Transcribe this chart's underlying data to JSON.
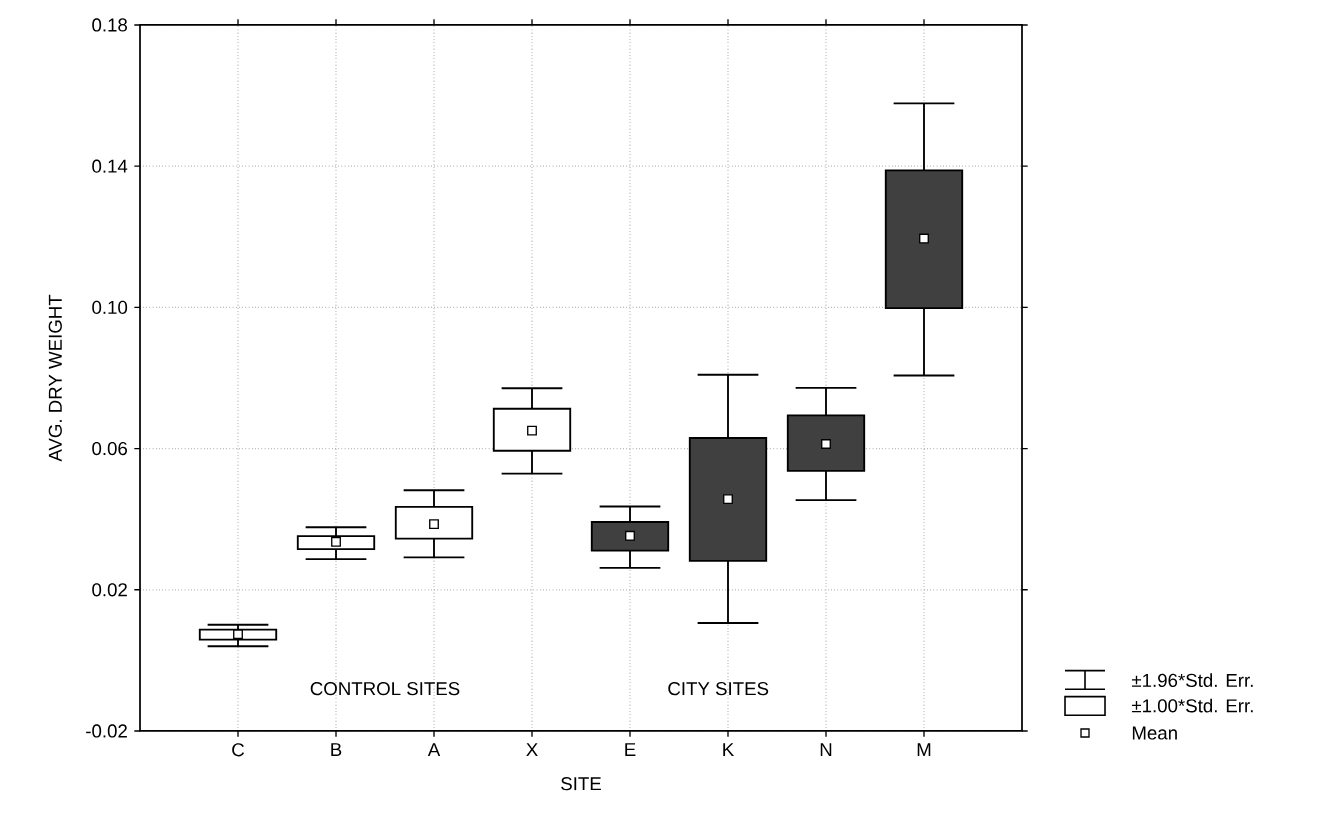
{
  "chart_data": {
    "type": "box",
    "xlabel": "SITE",
    "ylabel": "AVG. DRY WEIGHT",
    "categories": [
      "C",
      "B",
      "A",
      "X",
      "E",
      "K",
      "N",
      "M"
    ],
    "colors": [
      "#ffffff",
      "#ffffff",
      "#ffffff",
      "#ffffff",
      "#404040",
      "#404040",
      "#404040",
      "#404040"
    ],
    "boxes": [
      {
        "low": 0.004,
        "q1": 0.0059,
        "q3": 0.0087,
        "high": 0.0101,
        "mean": 0.0074
      },
      {
        "low": 0.0287,
        "q1": 0.0315,
        "q3": 0.0352,
        "high": 0.0377,
        "mean": 0.0336
      },
      {
        "low": 0.0292,
        "q1": 0.0345,
        "q3": 0.0435,
        "high": 0.0482,
        "mean": 0.0386
      },
      {
        "low": 0.0529,
        "q1": 0.0594,
        "q3": 0.0713,
        "high": 0.0771,
        "mean": 0.0651
      },
      {
        "low": 0.0262,
        "q1": 0.0311,
        "q3": 0.0392,
        "high": 0.0436,
        "mean": 0.0353
      },
      {
        "low": 0.0106,
        "q1": 0.0282,
        "q3": 0.063,
        "high": 0.0809,
        "mean": 0.0457
      },
      {
        "low": 0.0454,
        "q1": 0.0537,
        "q3": 0.0694,
        "high": 0.0772,
        "mean": 0.0613
      },
      {
        "low": 0.0807,
        "q1": 0.0998,
        "q3": 0.1388,
        "high": 0.1578,
        "mean": 0.1195
      }
    ],
    "ylim": [
      -0.02,
      0.18
    ],
    "yticks": [
      -0.02,
      0.02,
      0.06,
      {
        "value": 0.1,
        "label": "0.10"
      },
      0.14,
      0.18
    ],
    "grid": true,
    "annotations": [
      "CONTROL SITES",
      "CITY SITES",
      "±1.96*Std. Err.",
      "±1.00*Std. Err.",
      "Mean"
    ]
  }
}
